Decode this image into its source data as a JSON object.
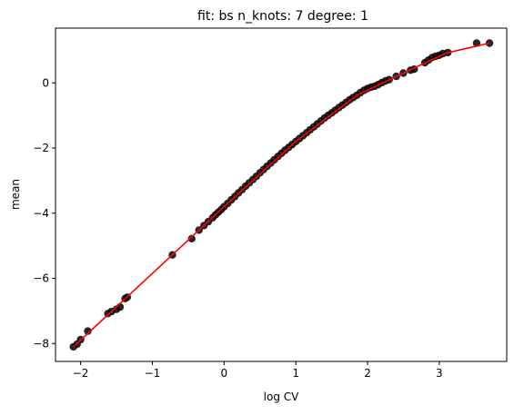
{
  "chart_data": {
    "type": "scatter",
    "title": "fit: bs n_knots: 7 degree: 1",
    "xlabel": "log CV",
    "ylabel": "mean",
    "xlim": [
      -2.35,
      3.94
    ],
    "ylim": [
      -8.55,
      1.68
    ],
    "xticks": [
      -2,
      -1,
      0,
      1,
      2,
      3
    ],
    "yticks": [
      -8,
      -6,
      -4,
      -2,
      0
    ],
    "grid": false,
    "colors": {
      "points": "#000000",
      "fit_line": "#ff0000"
    },
    "series": [
      {
        "kind": "scatter",
        "x": [
          -2.1,
          -2.05,
          -2.0,
          -1.9,
          -1.62,
          -1.57,
          -1.5,
          -1.45,
          -1.38,
          -1.35,
          -0.72,
          -0.45,
          -0.35,
          -0.28,
          -0.22,
          -0.16,
          -0.12,
          -0.08,
          -0.04,
          0.0,
          0.05,
          0.1,
          0.15,
          0.2,
          0.25,
          0.3,
          0.35,
          0.4,
          0.45,
          0.5,
          0.55,
          0.6,
          0.65,
          0.7,
          0.75,
          0.8,
          0.85,
          0.9,
          0.95,
          1.0,
          1.05,
          1.1,
          1.15,
          1.2,
          1.25,
          1.3,
          1.35,
          1.4,
          1.45,
          1.5,
          1.55,
          1.6,
          1.65,
          1.7,
          1.75,
          1.8,
          1.85,
          1.9,
          1.95,
          2.0,
          2.05,
          2.1,
          2.15,
          2.2,
          2.25,
          2.3,
          2.4,
          2.5,
          2.6,
          2.65,
          2.8,
          2.85,
          2.9,
          2.95,
          3.0,
          3.05,
          3.12,
          3.52,
          3.7
        ],
        "y": [
          -8.1,
          -8.02,
          -7.88,
          -7.62,
          -7.08,
          -7.02,
          -6.95,
          -6.88,
          -6.62,
          -6.58,
          -5.28,
          -4.78,
          -4.52,
          -4.38,
          -4.26,
          -4.14,
          -4.05,
          -3.97,
          -3.89,
          -3.8,
          -3.7,
          -3.59,
          -3.49,
          -3.38,
          -3.28,
          -3.17,
          -3.07,
          -2.97,
          -2.87,
          -2.76,
          -2.66,
          -2.56,
          -2.46,
          -2.36,
          -2.26,
          -2.16,
          -2.07,
          -1.98,
          -1.89,
          -1.8,
          -1.71,
          -1.62,
          -1.53,
          -1.44,
          -1.35,
          -1.26,
          -1.17,
          -1.08,
          -1.0,
          -0.92,
          -0.84,
          -0.76,
          -0.68,
          -0.6,
          -0.52,
          -0.45,
          -0.38,
          -0.3,
          -0.23,
          -0.17,
          -0.13,
          -0.1,
          -0.05,
          0.01,
          0.06,
          0.1,
          0.2,
          0.3,
          0.39,
          0.42,
          0.62,
          0.7,
          0.78,
          0.82,
          0.85,
          0.9,
          0.93,
          1.22,
          1.22
        ]
      },
      {
        "kind": "line",
        "x": [
          -2.1,
          -0.35,
          0.0,
          1.0,
          1.85,
          2.4,
          3.1,
          3.7
        ],
        "y": [
          -8.1,
          -4.52,
          -3.8,
          -1.8,
          -0.38,
          0.2,
          0.92,
          1.22
        ]
      }
    ]
  }
}
